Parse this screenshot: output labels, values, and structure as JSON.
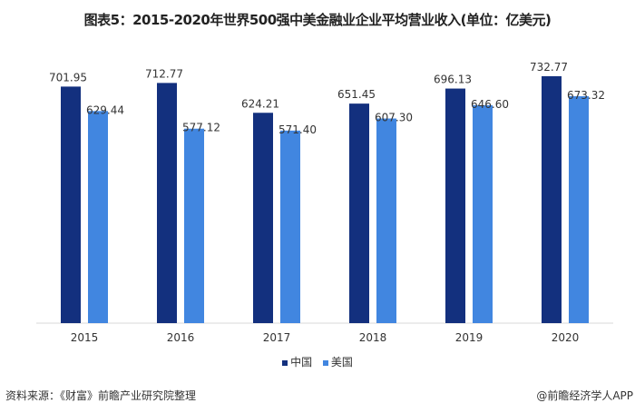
{
  "title": "图表5：2015-2020年世界500强中美金融业企业平均营业收入(单位：亿美元)",
  "chart_data": {
    "type": "bar",
    "title": "图表5：2015-2020年世界500强中美金融业企业平均营业收入(单位：亿美元)",
    "categories": [
      "2015",
      "2016",
      "2017",
      "2018",
      "2019",
      "2020"
    ],
    "series": [
      {
        "name": "中国",
        "color": "#13307e",
        "values": [
          701.95,
          712.77,
          624.21,
          651.45,
          696.13,
          732.77
        ]
      },
      {
        "name": "美国",
        "color": "#4186e0",
        "values": [
          629.44,
          577.12,
          571.4,
          607.3,
          646.6,
          673.32
        ]
      }
    ],
    "ylim": [
      0,
      800
    ],
    "grid": false,
    "legend": "bottom",
    "data_labels": true
  },
  "footer": {
    "source": "资料来源：《财富》前瞻产业研究院整理",
    "brand": "@前瞻经济学人APP"
  }
}
